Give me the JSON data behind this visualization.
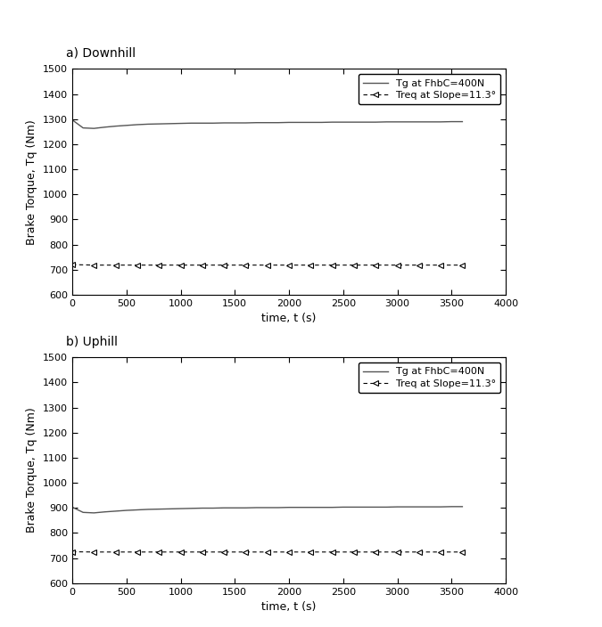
{
  "title_a": "a) Downhill",
  "title_b": "b) Uphill",
  "xlabel": "time, t (s)",
  "ylabel": "Brake Torque, Tq (Nm)",
  "xlim": [
    0,
    4000
  ],
  "ylim": [
    600,
    1500
  ],
  "yticks": [
    600,
    700,
    800,
    900,
    1000,
    1100,
    1200,
    1300,
    1400,
    1500
  ],
  "xticks": [
    0,
    500,
    1000,
    1500,
    2000,
    2500,
    3000,
    3500,
    4000
  ],
  "legend_line1": "Tg at FhbC=400N",
  "legend_line2": "Treq at Slope=11.3°",
  "downhill_tg_x": [
    0,
    100,
    200,
    300,
    400,
    500,
    600,
    700,
    800,
    900,
    1000,
    1100,
    1200,
    1300,
    1400,
    1500,
    1600,
    1700,
    1800,
    1900,
    2000,
    2100,
    2200,
    2300,
    2400,
    2500,
    2600,
    2700,
    2800,
    2900,
    3000,
    3100,
    3200,
    3300,
    3400,
    3500,
    3600
  ],
  "downhill_tg_y": [
    1297,
    1265,
    1263,
    1268,
    1272,
    1275,
    1278,
    1280,
    1281,
    1282,
    1283,
    1284,
    1284,
    1284,
    1285,
    1285,
    1285,
    1286,
    1286,
    1286,
    1287,
    1287,
    1287,
    1287,
    1288,
    1288,
    1288,
    1288,
    1288,
    1289,
    1289,
    1289,
    1289,
    1289,
    1289,
    1290,
    1290
  ],
  "downhill_treq_x": [
    0,
    200,
    400,
    600,
    800,
    1000,
    1200,
    1400,
    1600,
    1800,
    2000,
    2200,
    2400,
    2600,
    2800,
    3000,
    3200,
    3400,
    3600
  ],
  "downhill_treq_y": [
    720,
    718,
    718,
    718,
    718,
    718,
    718,
    718,
    718,
    718,
    718,
    718,
    718,
    718,
    718,
    718,
    718,
    718,
    718
  ],
  "uphill_tg_x": [
    0,
    100,
    200,
    300,
    400,
    500,
    600,
    700,
    800,
    900,
    1000,
    1100,
    1200,
    1300,
    1400,
    1500,
    1600,
    1700,
    1800,
    1900,
    2000,
    2100,
    2200,
    2300,
    2400,
    2500,
    2600,
    2700,
    2800,
    2900,
    3000,
    3100,
    3200,
    3300,
    3400,
    3500,
    3600
  ],
  "uphill_tg_y": [
    903,
    882,
    880,
    884,
    887,
    890,
    892,
    894,
    895,
    896,
    897,
    898,
    899,
    899,
    900,
    900,
    900,
    901,
    901,
    901,
    902,
    902,
    902,
    902,
    902,
    903,
    903,
    903,
    903,
    903,
    904,
    904,
    904,
    904,
    904,
    905,
    905
  ],
  "uphill_treq_x": [
    0,
    200,
    400,
    600,
    800,
    1000,
    1200,
    1400,
    1600,
    1800,
    2000,
    2200,
    2400,
    2600,
    2800,
    3000,
    3200,
    3400,
    3600
  ],
  "uphill_treq_y": [
    725,
    724,
    724,
    724,
    724,
    724,
    724,
    724,
    724,
    724,
    724,
    724,
    724,
    724,
    724,
    724,
    724,
    724,
    724
  ],
  "line_color_tg": "#555555",
  "line_color_treq": "#000000",
  "bg_color": "#ffffff",
  "fontsize_title": 10,
  "fontsize_axis": 9,
  "fontsize_tick": 8,
  "fontsize_legend": 8
}
